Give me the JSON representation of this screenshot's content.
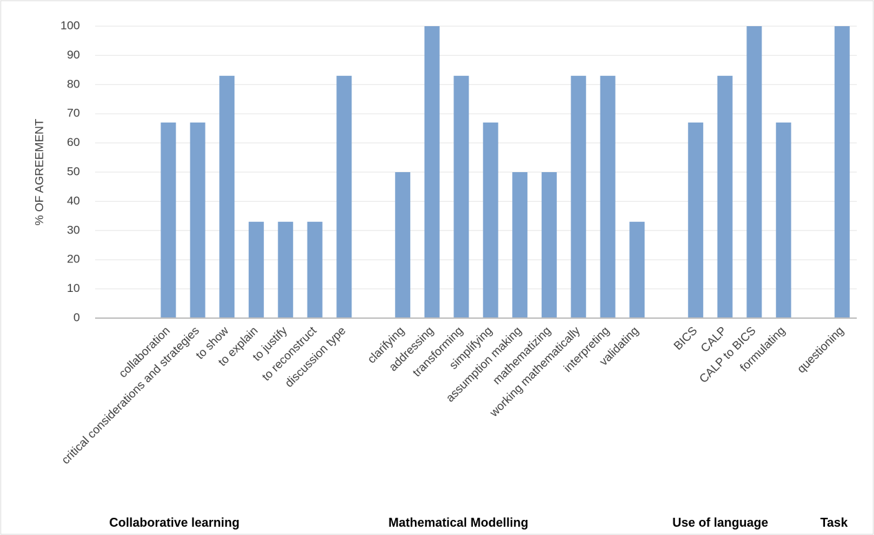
{
  "chart_data": {
    "type": "bar",
    "y_label": "% OF AGREEMENT",
    "categories": [
      null,
      null,
      "collaboration",
      "critical considerations and strategies",
      "to show",
      "to explain",
      "to justify",
      "to reconstruct",
      "discussion type",
      null,
      "clarifying",
      "addressing",
      "transforming",
      "simplifying",
      "assumption making",
      "mathematizing",
      "working mathematically",
      "interpreting",
      "validating",
      null,
      "BICS",
      "CALP",
      "CALP to BICS",
      "formulating",
      null,
      "questioning"
    ],
    "values": [
      null,
      null,
      67,
      67,
      83,
      33,
      33,
      33,
      83,
      null,
      50,
      100,
      83,
      67,
      50,
      50,
      83,
      83,
      33,
      null,
      67,
      83,
      100,
      67,
      null,
      100
    ],
    "color": "#7da3d0",
    "groups": [
      "Collaborative learning",
      "Mathematical Modelling",
      "Use of language",
      "Task"
    ],
    "ylim": [
      0,
      100
    ],
    "yticks": [
      0,
      10,
      20,
      30,
      40,
      50,
      60,
      70,
      80,
      90,
      100
    ],
    "grid": true
  }
}
